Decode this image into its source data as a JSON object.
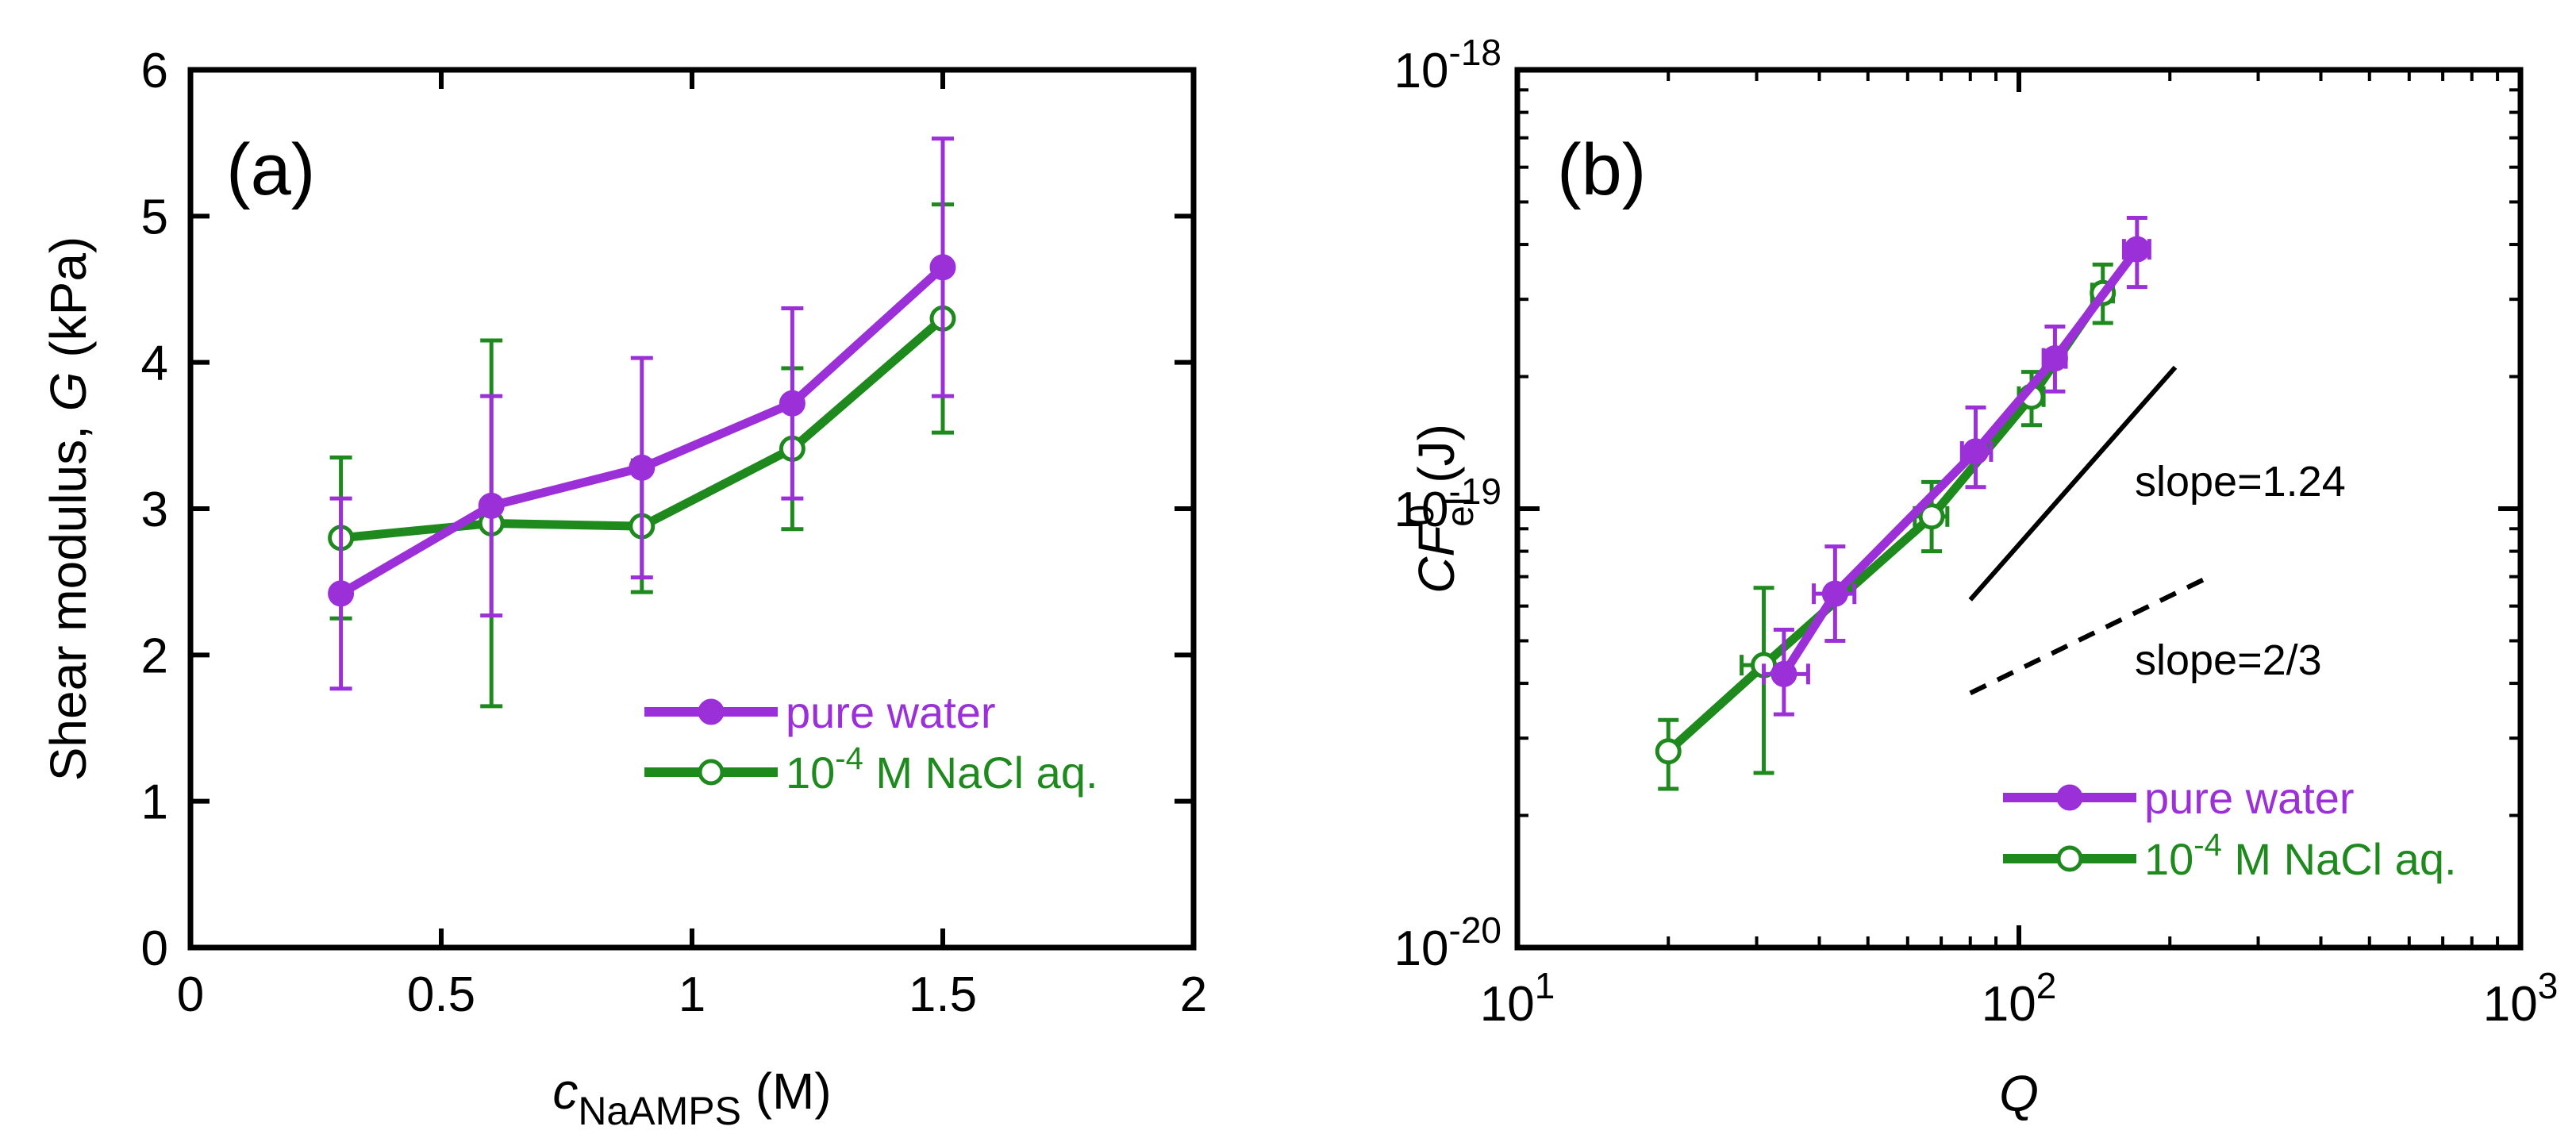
{
  "chart_data": [
    {
      "type": "line",
      "panel_label": "(a)",
      "xlabel_prefix": "c",
      "xlabel_sub": "NaAMPS",
      "xlabel_suffix": " (M)",
      "ylabel_prefix": "Shear modulus, ",
      "ylabel_var": "G",
      "ylabel_suffix": " (kPa)",
      "xlim": [
        0,
        2
      ],
      "ylim": [
        0,
        6
      ],
      "xticks": [
        0,
        0.5,
        1,
        1.5,
        2
      ],
      "xtick_labels": [
        "0",
        "0.5",
        "1",
        "1.5",
        "2"
      ],
      "yticks": [
        0,
        1,
        2,
        3,
        4,
        5,
        6
      ],
      "ytick_labels": [
        "0",
        "1",
        "2",
        "3",
        "4",
        "5",
        "6"
      ],
      "legend_position": "lower-right",
      "series": [
        {
          "name": "pure water",
          "color": "#9b30d9",
          "marker": "filled",
          "x": [
            0.3,
            0.6,
            0.9,
            1.2,
            1.5
          ],
          "y": [
            2.42,
            3.02,
            3.28,
            3.72,
            4.65
          ],
          "y_err": [
            0.65,
            0.75,
            0.75,
            0.65,
            0.88
          ]
        },
        {
          "name_prefix": "10",
          "name_sup": "-4",
          "name_suffix": " M NaCl aq.",
          "color": "#1e8a1e",
          "marker": "open",
          "x": [
            0.3,
            0.6,
            0.9,
            1.2,
            1.5
          ],
          "y": [
            2.8,
            2.9,
            2.88,
            3.41,
            4.3
          ],
          "y_err": [
            0.55,
            1.25,
            0.45,
            0.55,
            0.78
          ]
        }
      ]
    },
    {
      "type": "line",
      "scale": "log-log",
      "panel_label": "(b)",
      "xlabel": "Q",
      "ylabel_main": "CF",
      "ylabel_sup": "0",
      "ylabel_sub": "el",
      "ylabel_suffix": " (J)",
      "xlim": [
        10,
        1000
      ],
      "ylim": [
        1e-20,
        1e-18
      ],
      "xticks": [
        {
          "value": 10,
          "base": "10",
          "exp": "1"
        },
        {
          "value": 100,
          "base": "10",
          "exp": "2"
        },
        {
          "value": 1000,
          "base": "10",
          "exp": "3"
        }
      ],
      "yticks": [
        {
          "value": 1e-20,
          "base": "10",
          "exp": "-20"
        },
        {
          "value": 1e-19,
          "base": "10",
          "exp": "-19"
        },
        {
          "value": 1e-18,
          "base": "10",
          "exp": "-18"
        }
      ],
      "legend_position": "lower-right",
      "series": [
        {
          "name": "pure water",
          "color": "#9b30d9",
          "marker": "filled",
          "x": [
            34,
            43,
            82,
            118,
            172
          ],
          "y": [
            4.2e-20,
            6.4e-20,
            1.35e-19,
            2.2e-19,
            3.9e-19
          ],
          "y_err_low": [
            3.4e-20,
            5e-20,
            1.12e-19,
            1.85e-19,
            3.2e-19
          ],
          "y_err_high": [
            5.3e-20,
            8.2e-20,
            1.7e-19,
            2.6e-19,
            4.6e-19
          ],
          "x_err_low": [
            31,
            39,
            77,
            112,
            162
          ],
          "x_err_high": [
            38,
            47,
            88,
            124,
            182
          ]
        },
        {
          "name_prefix": "10",
          "name_sup": "-4",
          "name_suffix": " M NaCl aq.",
          "color": "#1e8a1e",
          "marker": "open",
          "x": [
            20,
            31,
            67,
            106,
            147
          ],
          "y": [
            2.8e-20,
            4.4e-20,
            9.6e-20,
            1.8e-19,
            3.1e-19
          ],
          "y_err_low": [
            2.3e-20,
            2.5e-20,
            8e-20,
            1.55e-19,
            2.65e-19
          ],
          "y_err_high": [
            3.3e-20,
            6.6e-20,
            1.15e-19,
            2.05e-19,
            3.6e-19
          ],
          "x_err_low": [
            20,
            28,
            62,
            100,
            140
          ],
          "x_err_high": [
            20,
            34,
            72,
            112,
            154
          ]
        }
      ],
      "guide_lines": [
        {
          "label": "slope=1.24",
          "style": "solid",
          "x": [
            80,
            205
          ],
          "y": [
            6.2e-20,
            2.1e-19
          ]
        },
        {
          "label": "slope=2/3",
          "style": "dashed",
          "x": [
            80,
            240
          ],
          "y": [
            3.8e-20,
            7e-20
          ]
        }
      ]
    }
  ]
}
